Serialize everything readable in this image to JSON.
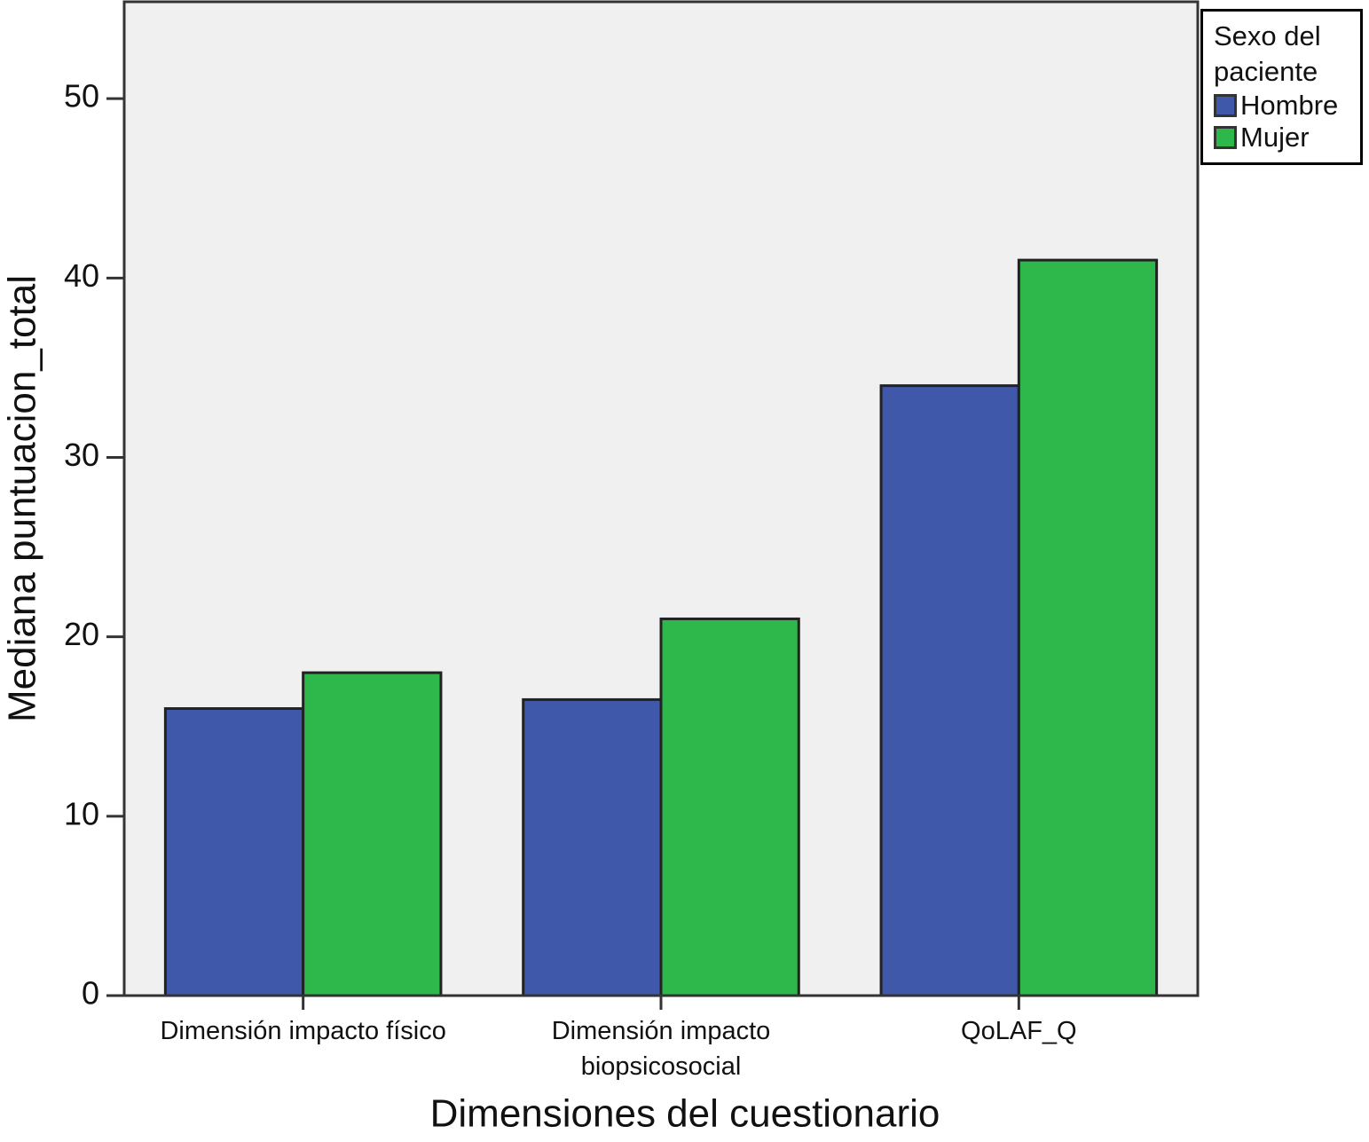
{
  "chart_data": {
    "type": "bar",
    "x_label": "Dimensiones del cuestionario",
    "y_label": "Mediana puntuacion_total",
    "categories": [
      "Dimensión impacto físico",
      "Dimensión impacto biopsicosocial",
      "QoLAF_Q"
    ],
    "series": [
      {
        "name": "Hombre",
        "color": "#3f58a9",
        "values": [
          16,
          16.5,
          34
        ]
      },
      {
        "name": "Mujer",
        "color": "#2eb74a",
        "values": [
          18,
          21,
          41
        ]
      }
    ],
    "legend_title": "Sexo del paciente",
    "legend_position": "outside-top-right",
    "ylim": [
      0,
      55.4
    ],
    "yticks": [
      0,
      10,
      20,
      30,
      40,
      50
    ],
    "grid": false
  }
}
